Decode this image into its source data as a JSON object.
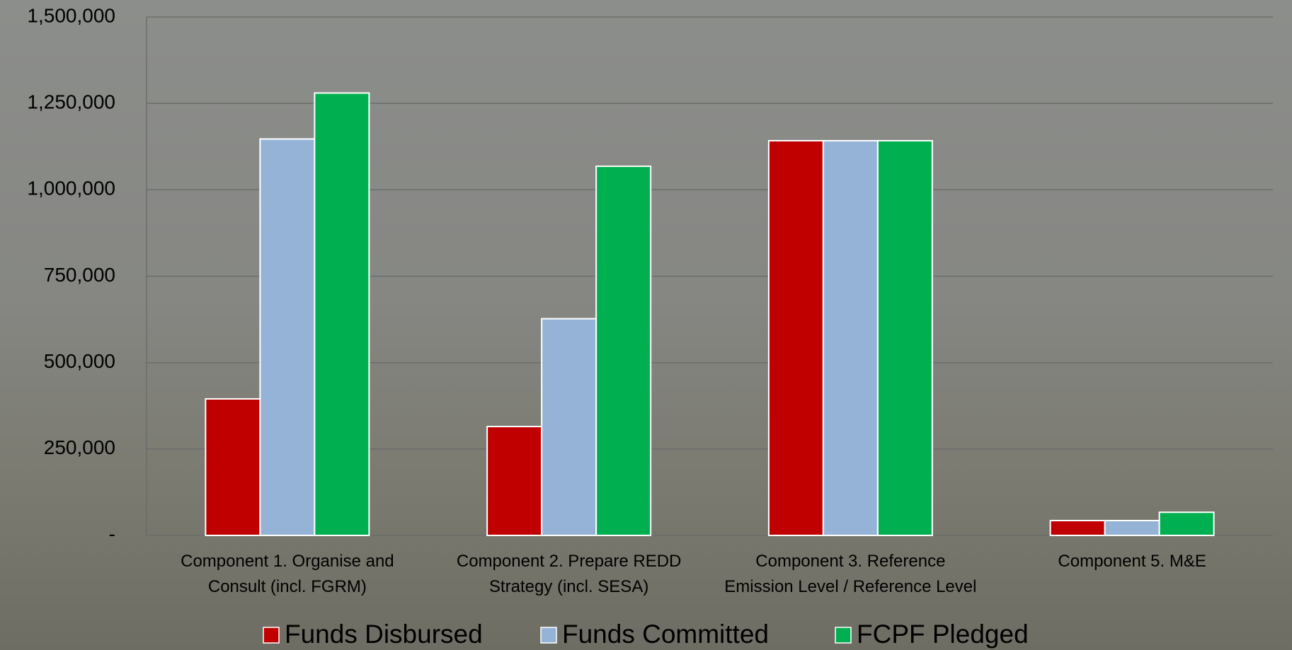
{
  "chart_data": {
    "type": "bar",
    "categories": [
      "Component 1. Organise and Consult (incl. FGRM)",
      "Component 2. Prepare REDD Strategy (incl. SESA)",
      "Component 3. Reference Emission Level / Reference Level",
      "Component 5. M&E"
    ],
    "series": [
      {
        "name": "Funds Disbursed",
        "color": "#c00000",
        "values": [
          395000,
          315000,
          1142000,
          43000
        ]
      },
      {
        "name": "Funds Committed",
        "color": "#95b3d7",
        "values": [
          1147000,
          627000,
          1142000,
          43000
        ]
      },
      {
        "name": "FCPF Pledged",
        "color": "#00b050",
        "values": [
          1280000,
          1068000,
          1142000,
          67000
        ]
      }
    ],
    "ylim": [
      0,
      1500000
    ],
    "yticks": [
      {
        "value": 0,
        "label": "-"
      },
      {
        "value": 250000,
        "label": "250,000"
      },
      {
        "value": 500000,
        "label": "500,000"
      },
      {
        "value": 750000,
        "label": "750,000"
      },
      {
        "value": 1000000,
        "label": "1,000,000"
      },
      {
        "value": 1250000,
        "label": "1,250,000"
      },
      {
        "value": 1500000,
        "label": "1,500,000"
      }
    ],
    "grid": true,
    "legend": "bottom"
  }
}
